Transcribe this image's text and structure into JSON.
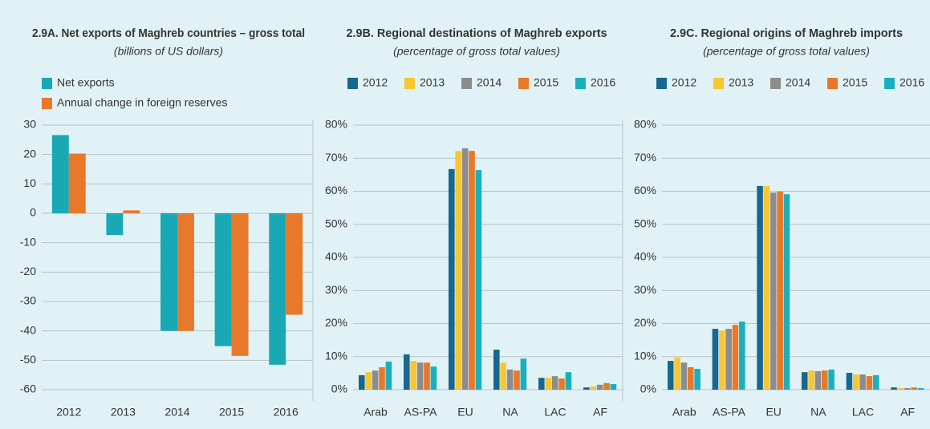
{
  "chart_data": [
    {
      "type": "bar",
      "title": "2.9A. Net exports of Maghreb countries – gross total",
      "subtitle": "(billions of US dollars)",
      "categories": [
        "2012",
        "2013",
        "2014",
        "2015",
        "2016"
      ],
      "series": [
        {
          "name": "Net exports",
          "color": "#19a9b5",
          "values": [
            26.6,
            -7.4,
            -40,
            -45.2,
            -51.5
          ]
        },
        {
          "name": "Annual change in foreign reserves",
          "color": "#e8782a",
          "values": [
            20.3,
            1,
            -40,
            -48.5,
            -34.5
          ]
        }
      ],
      "ylim": [
        -60,
        30
      ],
      "yticks": [
        30,
        20,
        10,
        0,
        -10,
        -20,
        -30,
        -40,
        -50,
        -60
      ],
      "grid": true,
      "legend": "top-left"
    },
    {
      "type": "bar",
      "title": "2.9B. Regional destinations of Maghreb exports",
      "subtitle": "(percentage of gross total values)",
      "categories": [
        "Arab",
        "AS-PA",
        "EU",
        "NA",
        "LAC",
        "AF"
      ],
      "series": [
        {
          "name": "2012",
          "color": "#17678e",
          "values": [
            4.4,
            10.7,
            66.7,
            12.1,
            3.6,
            0.7
          ]
        },
        {
          "name": "2013",
          "color": "#f7c631",
          "values": [
            5.3,
            8.7,
            72.2,
            8.2,
            3.6,
            1
          ]
        },
        {
          "name": "2014",
          "color": "#8c8c8c",
          "values": [
            5.8,
            8.2,
            73,
            6.1,
            4.1,
            1.5
          ]
        },
        {
          "name": "2015",
          "color": "#e8782a",
          "values": [
            6.8,
            8.2,
            72.2,
            5.8,
            3.4,
            2
          ]
        },
        {
          "name": "2016",
          "color": "#19b0be",
          "values": [
            8.5,
            7,
            66.4,
            9.4,
            5.3,
            1.7
          ]
        }
      ],
      "ylim": [
        0,
        80
      ],
      "yticks": [
        {
          "value": 0,
          "label": "0%"
        },
        {
          "value": 10,
          "label": "10%"
        },
        {
          "value": 20,
          "label": "20%"
        },
        {
          "value": 30,
          "label": "30%"
        },
        {
          "value": 40,
          "label": "40%"
        },
        {
          "value": 50,
          "label": "50%"
        },
        {
          "value": 60,
          "label": "60%"
        },
        {
          "value": 70,
          "label": "70%"
        },
        {
          "value": 80,
          "label": "80%"
        }
      ],
      "grid": true,
      "legend": "top"
    },
    {
      "type": "bar",
      "title": "2.9C. Regional origins of Maghreb imports",
      "subtitle": "(percentage of gross total values)",
      "categories": [
        "Arab",
        "AS-PA",
        "EU",
        "NA",
        "LAC",
        "AF"
      ],
      "series": [
        {
          "name": "2012",
          "color": "#17678e",
          "values": [
            8.7,
            18.4,
            61.6,
            5.3,
            5.1,
            0.7
          ]
        },
        {
          "name": "2013",
          "color": "#f7c631",
          "values": [
            9.7,
            17.9,
            61.6,
            5.8,
            4.6,
            0.5
          ]
        },
        {
          "name": "2014",
          "color": "#8c8c8c",
          "values": [
            8.2,
            18.4,
            59.6,
            5.6,
            4.6,
            0.5
          ]
        },
        {
          "name": "2015",
          "color": "#e8782a",
          "values": [
            6.8,
            19.6,
            59.9,
            5.8,
            4.1,
            0.7
          ]
        },
        {
          "name": "2016",
          "color": "#19b0be",
          "values": [
            6.3,
            20.6,
            59.1,
            6.1,
            4.4,
            0.5
          ]
        }
      ],
      "ylim": [
        0,
        80
      ],
      "yticks": [
        {
          "value": 0,
          "label": "0%"
        },
        {
          "value": 10,
          "label": "10%"
        },
        {
          "value": 20,
          "label": "20%"
        },
        {
          "value": 30,
          "label": "30%"
        },
        {
          "value": 40,
          "label": "40%"
        },
        {
          "value": 50,
          "label": "50%"
        },
        {
          "value": 60,
          "label": "60%"
        },
        {
          "value": 70,
          "label": "70%"
        },
        {
          "value": 80,
          "label": "80%"
        }
      ],
      "grid": true,
      "legend": "top"
    }
  ]
}
